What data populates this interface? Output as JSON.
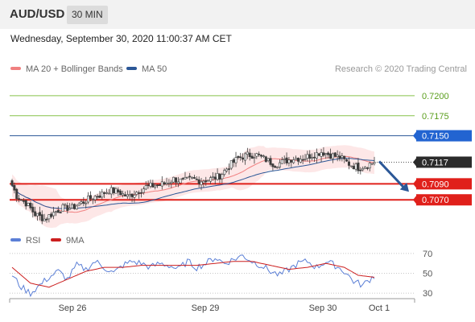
{
  "header": {
    "symbol": "AUD/USD",
    "interval": "30 MIN"
  },
  "timestamp": "Wednesday, September 30, 2020 11:00:37 AM CET",
  "legend": {
    "ma20_label": "MA 20 + Bollinger Bands",
    "ma50_label": "MA 50",
    "rsi_label": "RSI",
    "ma9_label": "9MA"
  },
  "copyright": "Research © 2020 Trading Central",
  "colors": {
    "candle": "#3d3d3d",
    "ma20": "#f08080",
    "bollinger_fill": "#fde3e3",
    "ma50": "#2b5797",
    "target_line": "#86c24a",
    "target_text": "#5a9e1c",
    "pivot_line": "#2b5797",
    "pivot_tag": "#2264d1",
    "current_tag": "#2b2b2b",
    "support_line": "#e0201b",
    "support_tag": "#e0201b",
    "arrow": "#2b5797",
    "rsi_line": "#5b7fd6",
    "ma9_line": "#cc1f1f"
  },
  "chart_data": [
    {
      "type": "candlestick",
      "title": "AUD/USD",
      "interval": "30 MIN",
      "ylim": [
        0.7022,
        0.7223
      ],
      "x_tick_labels": [
        "Sep 26",
        "Sep 29",
        "Sep 30",
        "Oct 1"
      ],
      "price_close_anchors": [
        [
          0,
          0.7088
        ],
        [
          2,
          0.7075
        ],
        [
          6,
          0.7066
        ],
        [
          10,
          0.7052
        ],
        [
          14,
          0.7046
        ],
        [
          18,
          0.7054
        ],
        [
          22,
          0.706
        ],
        [
          26,
          0.706
        ],
        [
          30,
          0.7066
        ],
        [
          34,
          0.7072
        ],
        [
          38,
          0.7076
        ],
        [
          42,
          0.7082
        ],
        [
          46,
          0.708
        ],
        [
          50,
          0.7074
        ],
        [
          54,
          0.708
        ],
        [
          58,
          0.7086
        ],
        [
          62,
          0.7088
        ],
        [
          66,
          0.709
        ],
        [
          70,
          0.7096
        ],
        [
          74,
          0.7093
        ],
        [
          78,
          0.7096
        ],
        [
          82,
          0.7094
        ],
        [
          86,
          0.7096
        ],
        [
          90,
          0.71
        ],
        [
          94,
          0.7112
        ],
        [
          98,
          0.7122
        ],
        [
          102,
          0.7126
        ],
        [
          106,
          0.7126
        ],
        [
          110,
          0.712
        ],
        [
          114,
          0.7114
        ],
        [
          118,
          0.7118
        ],
        [
          122,
          0.7122
        ],
        [
          126,
          0.7122
        ],
        [
          130,
          0.7126
        ],
        [
          134,
          0.713
        ],
        [
          138,
          0.7126
        ],
        [
          142,
          0.7123
        ],
        [
          146,
          0.7115
        ],
        [
          150,
          0.711
        ],
        [
          154,
          0.7114
        ],
        [
          157,
          0.7117
        ]
      ],
      "candle_count": 158,
      "current_price": 0.7117,
      "levels": [
        {
          "label": "0.7200",
          "value": 0.72,
          "kind": "target"
        },
        {
          "label": "0.7175",
          "value": 0.7175,
          "kind": "target"
        },
        {
          "label": "0.7150",
          "value": 0.715,
          "kind": "pivot"
        },
        {
          "label": "0.7117",
          "value": 0.7117,
          "kind": "current"
        },
        {
          "label": "0.7090",
          "value": 0.709,
          "kind": "support"
        },
        {
          "label": "0.7070",
          "value": 0.707,
          "kind": "support"
        }
      ],
      "indicators": [
        "MA 20 + Bollinger Bands",
        "MA 50"
      ],
      "forecast_arrow": {
        "from": 0.7118,
        "to": 0.708,
        "direction": "down"
      }
    },
    {
      "type": "line",
      "series": [
        {
          "name": "RSI",
          "anchors": [
            [
              0,
              48
            ],
            [
              4,
              36
            ],
            [
              8,
              30
            ],
            [
              12,
              38
            ],
            [
              16,
              46
            ],
            [
              20,
              52
            ],
            [
              24,
              44
            ],
            [
              28,
              58
            ],
            [
              32,
              54
            ],
            [
              36,
              62
            ],
            [
              40,
              56
            ],
            [
              44,
              50
            ],
            [
              48,
              58
            ],
            [
              52,
              62
            ],
            [
              56,
              60
            ],
            [
              60,
              56
            ],
            [
              64,
              60
            ],
            [
              68,
              58
            ],
            [
              72,
              54
            ],
            [
              76,
              62
            ],
            [
              80,
              56
            ],
            [
              84,
              60
            ],
            [
              88,
              66
            ],
            [
              92,
              60
            ],
            [
              96,
              64
            ],
            [
              100,
              68
            ],
            [
              104,
              62
            ],
            [
              108,
              58
            ],
            [
              112,
              52
            ],
            [
              116,
              48
            ],
            [
              120,
              54
            ],
            [
              124,
              60
            ],
            [
              128,
              62
            ],
            [
              132,
              56
            ],
            [
              136,
              62
            ],
            [
              140,
              58
            ],
            [
              144,
              52
            ],
            [
              148,
              42
            ],
            [
              152,
              38
            ],
            [
              156,
              46
            ],
            [
              157,
              47
            ]
          ]
        },
        {
          "name": "9MA",
          "anchors": [
            [
              0,
              56
            ],
            [
              8,
              40
            ],
            [
              16,
              36
            ],
            [
              24,
              44
            ],
            [
              32,
              52
            ],
            [
              40,
              56
            ],
            [
              48,
              56
            ],
            [
              56,
              58
            ],
            [
              64,
              58
            ],
            [
              72,
              58
            ],
            [
              80,
              58
            ],
            [
              88,
              60
            ],
            [
              96,
              62
            ],
            [
              104,
              62
            ],
            [
              112,
              58
            ],
            [
              120,
              54
            ],
            [
              128,
              56
            ],
            [
              136,
              60
            ],
            [
              144,
              56
            ],
            [
              150,
              48
            ],
            [
              157,
              46
            ]
          ]
        }
      ],
      "ylim": [
        22,
        78
      ],
      "y_tick_labels": [
        "70",
        "50",
        "30"
      ],
      "y_ticks": [
        70,
        50,
        30
      ]
    }
  ]
}
